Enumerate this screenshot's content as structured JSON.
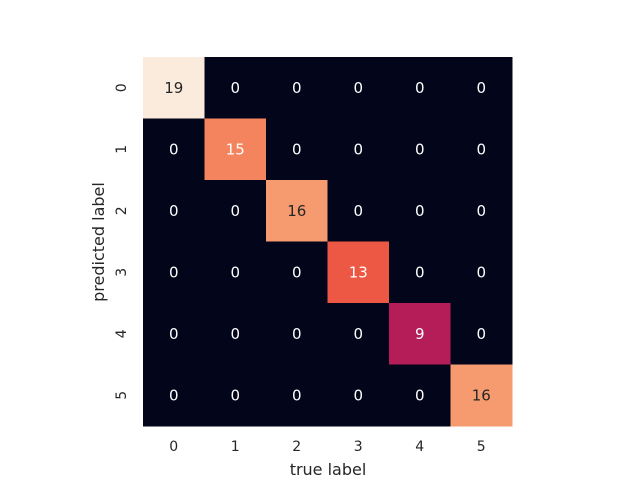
{
  "chart_data": {
    "type": "heatmap",
    "title": "",
    "xlabel": "true label",
    "ylabel": "predicted label",
    "x_categories": [
      "0",
      "1",
      "2",
      "3",
      "4",
      "5"
    ],
    "y_categories": [
      "0",
      "1",
      "2",
      "3",
      "4",
      "5"
    ],
    "matrix": [
      [
        19,
        0,
        0,
        0,
        0,
        0
      ],
      [
        0,
        15,
        0,
        0,
        0,
        0
      ],
      [
        0,
        0,
        16,
        0,
        0,
        0
      ],
      [
        0,
        0,
        0,
        13,
        0,
        0
      ],
      [
        0,
        0,
        0,
        0,
        9,
        0
      ],
      [
        0,
        0,
        0,
        0,
        0,
        16
      ]
    ],
    "value_range": [
      0,
      19
    ],
    "colorbar": false,
    "annotated": true,
    "colormap": "rocket",
    "colors": {
      "low": "#03051a",
      "high": "#faebdd"
    }
  }
}
